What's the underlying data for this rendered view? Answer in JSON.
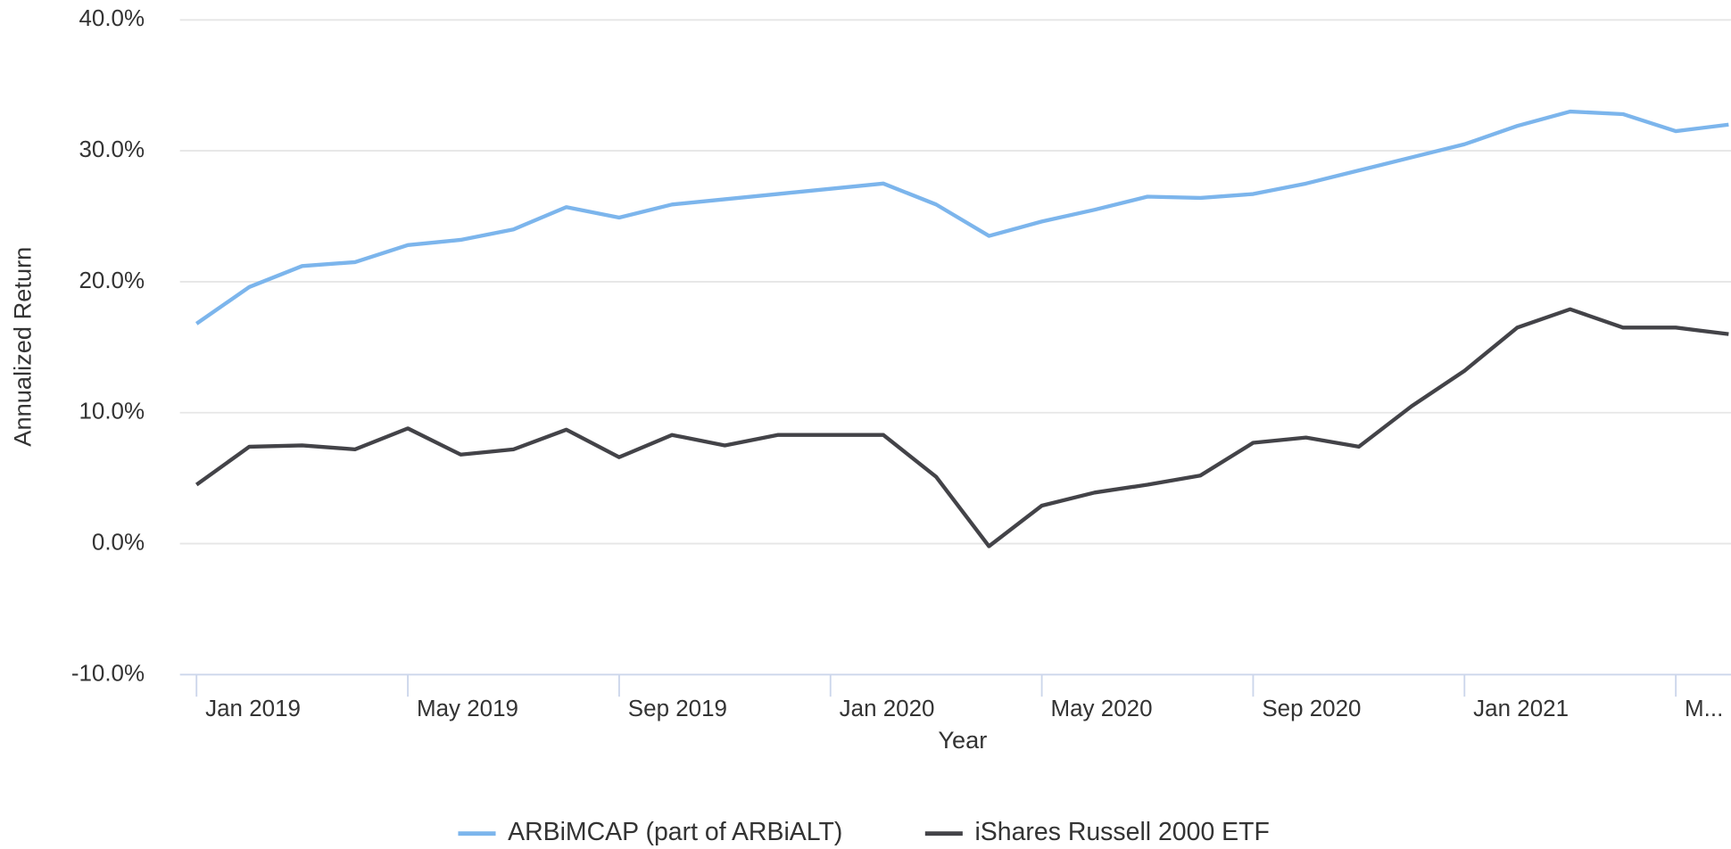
{
  "chart_data": {
    "type": "line",
    "x_label": "Year",
    "y_label": "Annualized Return",
    "categories": [
      "Jan 2019",
      null,
      null,
      null,
      "May 2019",
      null,
      null,
      null,
      "Sep 2019",
      null,
      null,
      null,
      "Jan 2020",
      null,
      null,
      null,
      "May 2020",
      null,
      null,
      null,
      "Sep 2020",
      null,
      null,
      null,
      "Jan 2021",
      null,
      null,
      null,
      "M...",
      null
    ],
    "series": [
      {
        "name": "ARBiMCAP (part of ARBiALT)",
        "color": "#7cb5ec",
        "values": [
          16.8,
          19.6,
          21.2,
          21.5,
          22.8,
          23.2,
          24.0,
          25.7,
          24.9,
          25.9,
          26.3,
          26.7,
          27.1,
          27.5,
          25.9,
          23.5,
          24.6,
          25.5,
          26.5,
          26.4,
          26.7,
          27.5,
          28.5,
          29.5,
          30.5,
          31.9,
          33.0,
          32.8,
          31.5,
          32.0
        ]
      },
      {
        "name": "iShares Russell 2000 ETF",
        "color": "#434348",
        "values": [
          4.5,
          7.4,
          7.5,
          7.2,
          8.8,
          6.8,
          7.2,
          8.7,
          6.6,
          8.3,
          7.5,
          8.3,
          8.3,
          8.3,
          5.1,
          -0.2,
          2.9,
          3.9,
          4.5,
          5.2,
          7.7,
          8.1,
          7.4,
          10.5,
          13.2,
          16.5,
          17.9,
          16.5,
          16.5,
          16.0
        ]
      }
    ],
    "ylim": [
      -10,
      40
    ],
    "yticks": [
      {
        "value": -10,
        "label": "-10.0%"
      },
      {
        "value": 0,
        "label": "0.0%"
      },
      {
        "value": 10,
        "label": "10.0%"
      },
      {
        "value": 20,
        "label": "20.0%"
      },
      {
        "value": 30,
        "label": "30.0%"
      },
      {
        "value": 40,
        "label": "40.0%"
      }
    ],
    "grid": true,
    "legend": "bottom"
  }
}
